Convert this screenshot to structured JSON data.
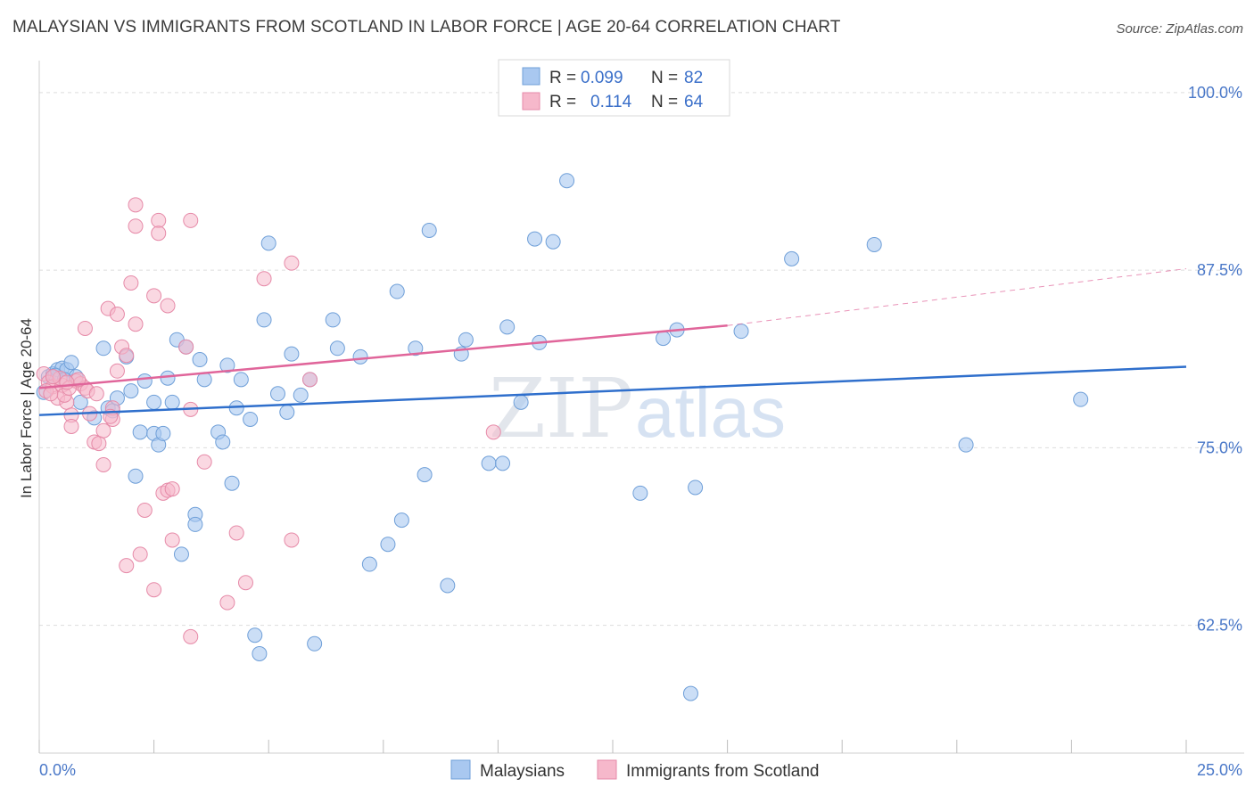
{
  "title": "MALAYSIAN VS IMMIGRANTS FROM SCOTLAND IN LABOR FORCE | AGE 20-64 CORRELATION CHART",
  "source": "Source: ZipAtlas.com",
  "colors": {
    "blue_fill": "#a9c8f0",
    "blue_stroke": "#6f9fd8",
    "blue_line": "#2f6fcc",
    "pink_fill": "#f6b8cb",
    "pink_stroke": "#e68aa8",
    "pink_line": "#e0659a",
    "grid": "#dddddd",
    "axis_text": "#4a78c8"
  },
  "legend_top": {
    "rows": [
      {
        "r_label": "R =",
        "r_value": "0.099",
        "n_label": "N =",
        "n_value": "82"
      },
      {
        "r_label": "R =",
        "r_value": "0.114",
        "n_label": "N =",
        "n_value": "64"
      }
    ]
  },
  "watermark": {
    "part1": "ZIP",
    "part2": "atlas"
  },
  "chart_data": {
    "type": "scatter",
    "title": "MALAYSIAN VS IMMIGRANTS FROM SCOTLAND IN LABOR FORCE | AGE 20-64 CORRELATION CHART",
    "xlabel": "",
    "ylabel": "In Labor Force | Age 20-64",
    "xlim": [
      0,
      25
    ],
    "ylim": [
      53.5,
      101.5
    ],
    "x_tick_labels": [
      "0.0%",
      "25.0%"
    ],
    "y_ticks": [
      62.5,
      75.0,
      87.5,
      100.0
    ],
    "y_tick_labels": [
      "62.5%",
      "75.0%",
      "87.5%",
      "100.0%"
    ],
    "grid": true,
    "legend_position": "top-center",
    "series": [
      {
        "name": "Malaysians",
        "color": "#a9c8f0",
        "trend": {
          "x0": 0,
          "y0": 77.3,
          "x1": 25,
          "y1": 80.7
        },
        "points": [
          [
            0.1,
            78.9
          ],
          [
            0.2,
            80.0
          ],
          [
            0.3,
            80.2
          ],
          [
            0.4,
            80.5
          ],
          [
            0.5,
            80.6
          ],
          [
            0.6,
            80.5
          ],
          [
            0.7,
            81.0
          ],
          [
            0.8,
            80.0
          ],
          [
            0.9,
            78.2
          ],
          [
            1.2,
            77.1
          ],
          [
            1.4,
            82.0
          ],
          [
            1.5,
            77.8
          ],
          [
            1.6,
            77.6
          ],
          [
            1.7,
            78.5
          ],
          [
            1.9,
            81.4
          ],
          [
            2.0,
            79.0
          ],
          [
            2.1,
            73.0
          ],
          [
            2.2,
            76.1
          ],
          [
            2.3,
            79.7
          ],
          [
            2.5,
            76.0
          ],
          [
            2.5,
            78.2
          ],
          [
            2.6,
            75.2
          ],
          [
            2.7,
            76.0
          ],
          [
            2.8,
            79.9
          ],
          [
            2.9,
            78.2
          ],
          [
            3.0,
            82.6
          ],
          [
            3.2,
            82.1
          ],
          [
            3.1,
            67.5
          ],
          [
            3.4,
            70.3
          ],
          [
            3.4,
            69.6
          ],
          [
            3.5,
            81.2
          ],
          [
            3.6,
            79.8
          ],
          [
            3.9,
            76.1
          ],
          [
            4.0,
            75.4
          ],
          [
            4.1,
            80.8
          ],
          [
            4.2,
            72.5
          ],
          [
            4.3,
            77.8
          ],
          [
            4.4,
            79.8
          ],
          [
            4.6,
            77.0
          ],
          [
            4.7,
            61.8
          ],
          [
            4.8,
            60.5
          ],
          [
            4.9,
            84.0
          ],
          [
            5.0,
            89.4
          ],
          [
            5.2,
            78.8
          ],
          [
            5.4,
            77.5
          ],
          [
            5.5,
            81.6
          ],
          [
            5.7,
            78.7
          ],
          [
            5.9,
            79.8
          ],
          [
            6.0,
            61.2
          ],
          [
            6.4,
            84.0
          ],
          [
            6.5,
            82.0
          ],
          [
            7.0,
            81.4
          ],
          [
            7.2,
            66.8
          ],
          [
            7.6,
            68.2
          ],
          [
            7.8,
            86.0
          ],
          [
            7.9,
            69.9
          ],
          [
            8.2,
            82.0
          ],
          [
            8.4,
            73.1
          ],
          [
            8.5,
            90.3
          ],
          [
            8.9,
            65.3
          ],
          [
            9.2,
            81.6
          ],
          [
            9.3,
            82.6
          ],
          [
            9.8,
            73.9
          ],
          [
            10.1,
            73.9
          ],
          [
            10.2,
            83.5
          ],
          [
            10.5,
            78.2
          ],
          [
            10.8,
            89.7
          ],
          [
            10.9,
            82.4
          ],
          [
            11.2,
            89.5
          ],
          [
            11.5,
            93.8
          ],
          [
            13.1,
            71.8
          ],
          [
            13.6,
            82.7
          ],
          [
            13.9,
            83.3
          ],
          [
            14.2,
            57.7
          ],
          [
            14.3,
            72.2
          ],
          [
            15.3,
            83.2
          ],
          [
            16.4,
            88.3
          ],
          [
            18.2,
            89.3
          ],
          [
            20.2,
            75.2
          ],
          [
            22.7,
            78.4
          ],
          [
            0.35,
            80.1
          ],
          [
            0.55,
            79.8
          ]
        ]
      },
      {
        "name": "Immigrants from Scotland",
        "color": "#f6b8cb",
        "trend_solid": {
          "x0": 0,
          "y0": 79.2,
          "x1": 15.0,
          "y1": 83.6
        },
        "trend_dashed": {
          "x0": 15.0,
          "y0": 83.6,
          "x1": 25,
          "y1": 87.6
        },
        "points": [
          [
            0.1,
            80.2
          ],
          [
            0.2,
            79.6
          ],
          [
            0.3,
            79.3
          ],
          [
            0.4,
            78.5
          ],
          [
            0.5,
            79.4
          ],
          [
            0.6,
            78.2
          ],
          [
            0.7,
            77.3
          ],
          [
            0.7,
            76.5
          ],
          [
            0.8,
            79.7
          ],
          [
            0.9,
            79.5
          ],
          [
            1.0,
            79.2
          ],
          [
            1.0,
            83.4
          ],
          [
            1.1,
            77.4
          ],
          [
            1.2,
            75.4
          ],
          [
            1.3,
            75.3
          ],
          [
            1.4,
            73.8
          ],
          [
            1.4,
            76.2
          ],
          [
            1.5,
            84.8
          ],
          [
            1.6,
            77.0
          ],
          [
            1.6,
            77.8
          ],
          [
            1.7,
            80.4
          ],
          [
            1.7,
            84.4
          ],
          [
            1.8,
            82.1
          ],
          [
            1.9,
            81.5
          ],
          [
            1.9,
            66.7
          ],
          [
            2.0,
            86.6
          ],
          [
            2.1,
            92.1
          ],
          [
            2.1,
            90.6
          ],
          [
            2.1,
            83.7
          ],
          [
            2.2,
            67.5
          ],
          [
            2.3,
            70.6
          ],
          [
            2.5,
            85.7
          ],
          [
            2.5,
            65.0
          ],
          [
            2.6,
            91.0
          ],
          [
            2.6,
            90.1
          ],
          [
            2.7,
            71.8
          ],
          [
            2.8,
            85.0
          ],
          [
            2.8,
            72.0
          ],
          [
            2.9,
            72.1
          ],
          [
            2.9,
            68.5
          ],
          [
            3.2,
            82.1
          ],
          [
            3.3,
            77.7
          ],
          [
            3.3,
            61.7
          ],
          [
            3.3,
            91.0
          ],
          [
            3.6,
            74.0
          ],
          [
            4.1,
            64.1
          ],
          [
            4.3,
            69.0
          ],
          [
            4.5,
            65.5
          ],
          [
            4.9,
            86.9
          ],
          [
            5.5,
            88.0
          ],
          [
            5.5,
            68.5
          ],
          [
            5.9,
            79.8
          ],
          [
            9.9,
            76.1
          ],
          [
            0.15,
            79.0
          ],
          [
            0.25,
            78.8
          ],
          [
            0.45,
            79.9
          ],
          [
            0.55,
            78.7
          ],
          [
            0.65,
            79.2
          ],
          [
            0.85,
            79.8
          ],
          [
            1.05,
            79.0
          ],
          [
            0.3,
            80.0
          ],
          [
            0.6,
            79.6
          ],
          [
            1.25,
            78.8
          ],
          [
            1.55,
            77.2
          ]
        ]
      }
    ]
  },
  "bottom_legend": {
    "items": [
      "Malaysians",
      "Immigrants from Scotland"
    ]
  }
}
